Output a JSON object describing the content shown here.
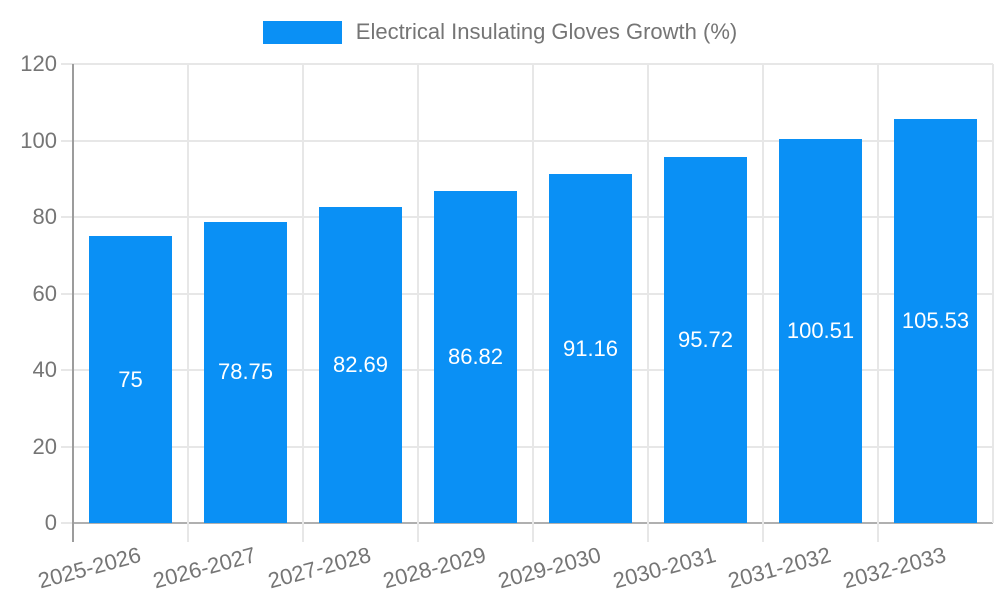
{
  "legend": {
    "label": "Electrical Insulating Gloves Growth (%)"
  },
  "colors": {
    "bar": "#0a90f5",
    "gridline": "#e7e7e7",
    "baseline": "#b0b0b0",
    "axis_line": "#9c9c9c",
    "tick_text": "#757575",
    "value_text": "#ffffff",
    "background": "#ffffff"
  },
  "chart_data": {
    "type": "bar",
    "title": "Electrical Insulating Gloves Growth (%)",
    "categories": [
      "2025-2026",
      "2026-2027",
      "2027-2028",
      "2028-2029",
      "2029-2030",
      "2030-2031",
      "2031-2032",
      "2032-2033"
    ],
    "values": [
      75,
      78.75,
      82.69,
      86.82,
      91.16,
      95.72,
      100.51,
      105.53
    ],
    "value_labels": [
      "75",
      "78.75",
      "82.69",
      "86.82",
      "91.16",
      "95.72",
      "100.51",
      "105.53"
    ],
    "xlabel": "",
    "ylabel": "",
    "ylim": [
      0,
      120
    ],
    "yticks": [
      0,
      20,
      40,
      60,
      80,
      100,
      120
    ],
    "grid": true,
    "legend_position": "top",
    "bar_color": "#0a90f5",
    "value_label_position": "center-inside"
  }
}
